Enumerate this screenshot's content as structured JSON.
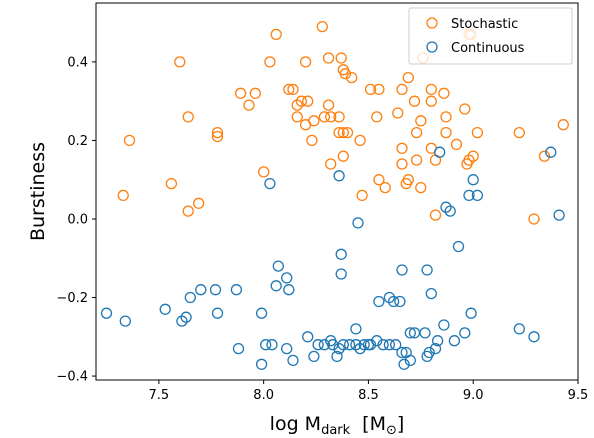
{
  "chart_data": {
    "type": "scatter",
    "title": "",
    "xlabel": "log M",
    "xlabel_sub": "dark",
    "xlabel_unit_prefix": "[M",
    "xlabel_unit_sub": "⊙",
    "xlabel_unit_suffix": "]",
    "ylabel": "Burstiness",
    "xlim": [
      7.2,
      9.5
    ],
    "ylim": [
      -0.41,
      0.55
    ],
    "xticks": [
      7.5,
      8.0,
      8.5,
      9.0,
      9.5
    ],
    "xtick_labels": [
      "7.5",
      "8.0",
      "8.5",
      "9.0",
      "9.5"
    ],
    "yticks": [
      -0.4,
      -0.2,
      0.0,
      0.2,
      0.4
    ],
    "ytick_labels": [
      "−0.4",
      "−0.2",
      "0.0",
      "0.2",
      "0.4"
    ],
    "grid": false,
    "legend_position": "top-right",
    "series": [
      {
        "name": "Stochastic",
        "color": "#ff7f0e",
        "marker": "open-circle",
        "x": [
          8.28,
          7.6,
          8.06,
          8.31,
          8.37,
          8.38,
          8.39,
          8.14,
          8.2,
          8.03,
          7.96,
          8.76,
          8.69,
          7.89,
          7.93,
          8.16,
          8.18,
          7.64,
          7.78,
          8.42,
          8.29,
          8.32,
          8.51,
          8.66,
          8.8,
          8.72,
          8.8,
          8.86,
          8.96,
          8.64,
          8.73,
          8.54,
          8.75,
          8.87,
          8.92,
          7.78,
          8.87,
          9.02,
          9.22,
          9.43,
          8.4,
          8.36,
          8.38,
          8.23,
          8.66,
          8.8,
          8.82,
          8.66,
          8.73,
          9.0,
          8.98,
          9.34,
          8.32,
          7.36,
          7.56,
          7.33,
          7.64,
          7.69,
          8.0,
          8.55,
          8.58,
          8.47,
          8.68,
          8.69,
          8.75,
          8.82,
          8.99,
          8.98,
          9.29,
          8.38,
          8.2,
          8.21,
          8.76,
          8.97,
          8.55,
          8.36,
          8.31,
          8.46,
          8.24,
          8.16,
          8.12
        ],
        "y": [
          0.49,
          0.4,
          0.47,
          0.41,
          0.41,
          0.38,
          0.37,
          0.33,
          0.4,
          0.4,
          0.32,
          0.41,
          0.36,
          0.32,
          0.29,
          0.29,
          0.3,
          0.26,
          0.22,
          0.36,
          0.26,
          0.26,
          0.33,
          0.33,
          0.33,
          0.3,
          0.3,
          0.32,
          0.28,
          0.27,
          0.22,
          0.26,
          0.25,
          0.22,
          0.19,
          0.21,
          0.26,
          0.22,
          0.22,
          0.24,
          0.22,
          0.22,
          0.16,
          0.2,
          0.18,
          0.18,
          0.15,
          0.14,
          0.15,
          0.16,
          0.15,
          0.16,
          0.14,
          0.2,
          0.09,
          0.06,
          0.02,
          0.04,
          0.12,
          0.1,
          0.08,
          0.06,
          0.09,
          0.1,
          0.08,
          0.01,
          0.47,
          0.47,
          0.0,
          0.22,
          0.24,
          0.3,
          0.41,
          0.14,
          0.33,
          0.26,
          0.29,
          0.2,
          0.25,
          0.26,
          0.33
        ]
      },
      {
        "name": "Continuous",
        "color": "#1f77b4",
        "marker": "open-circle",
        "x": [
          8.03,
          8.36,
          8.84,
          8.87,
          9.37,
          8.98,
          9.02,
          9.0,
          8.89,
          9.41,
          8.45,
          8.37,
          8.07,
          8.06,
          8.11,
          7.87,
          7.99,
          8.12,
          8.37,
          8.66,
          8.78,
          8.93,
          8.55,
          8.6,
          8.65,
          8.8,
          8.7,
          8.99,
          7.53,
          7.7,
          7.65,
          7.77,
          7.25,
          7.34,
          7.61,
          7.63,
          7.78,
          7.88,
          8.01,
          8.04,
          8.11,
          8.21,
          8.26,
          8.29,
          8.32,
          8.33,
          8.36,
          8.38,
          8.41,
          8.44,
          8.46,
          8.48,
          8.51,
          8.54,
          8.57,
          8.6,
          8.63,
          8.66,
          8.68,
          8.72,
          8.77,
          8.83,
          8.86,
          8.91,
          8.96,
          9.22,
          9.29,
          8.44,
          8.5,
          8.24,
          8.35,
          8.78,
          7.99,
          8.14,
          8.67,
          8.7,
          8.79,
          8.82,
          8.62
        ],
        "y": [
          0.09,
          0.11,
          0.17,
          0.03,
          0.17,
          0.06,
          0.06,
          0.1,
          0.02,
          0.01,
          -0.01,
          -0.09,
          -0.12,
          -0.17,
          -0.15,
          -0.18,
          -0.24,
          -0.18,
          -0.14,
          -0.13,
          -0.13,
          -0.07,
          -0.21,
          -0.2,
          -0.21,
          -0.19,
          -0.29,
          -0.24,
          -0.23,
          -0.18,
          -0.2,
          -0.18,
          -0.24,
          -0.26,
          -0.26,
          -0.25,
          -0.24,
          -0.33,
          -0.32,
          -0.32,
          -0.33,
          -0.3,
          -0.32,
          -0.32,
          -0.31,
          -0.32,
          -0.33,
          -0.32,
          -0.32,
          -0.32,
          -0.33,
          -0.32,
          -0.32,
          -0.31,
          -0.32,
          -0.32,
          -0.32,
          -0.34,
          -0.34,
          -0.29,
          -0.29,
          -0.31,
          -0.27,
          -0.31,
          -0.29,
          -0.28,
          -0.3,
          -0.28,
          -0.32,
          -0.35,
          -0.35,
          -0.35,
          -0.37,
          -0.36,
          -0.37,
          -0.36,
          -0.34,
          -0.33,
          -0.21
        ]
      }
    ]
  }
}
